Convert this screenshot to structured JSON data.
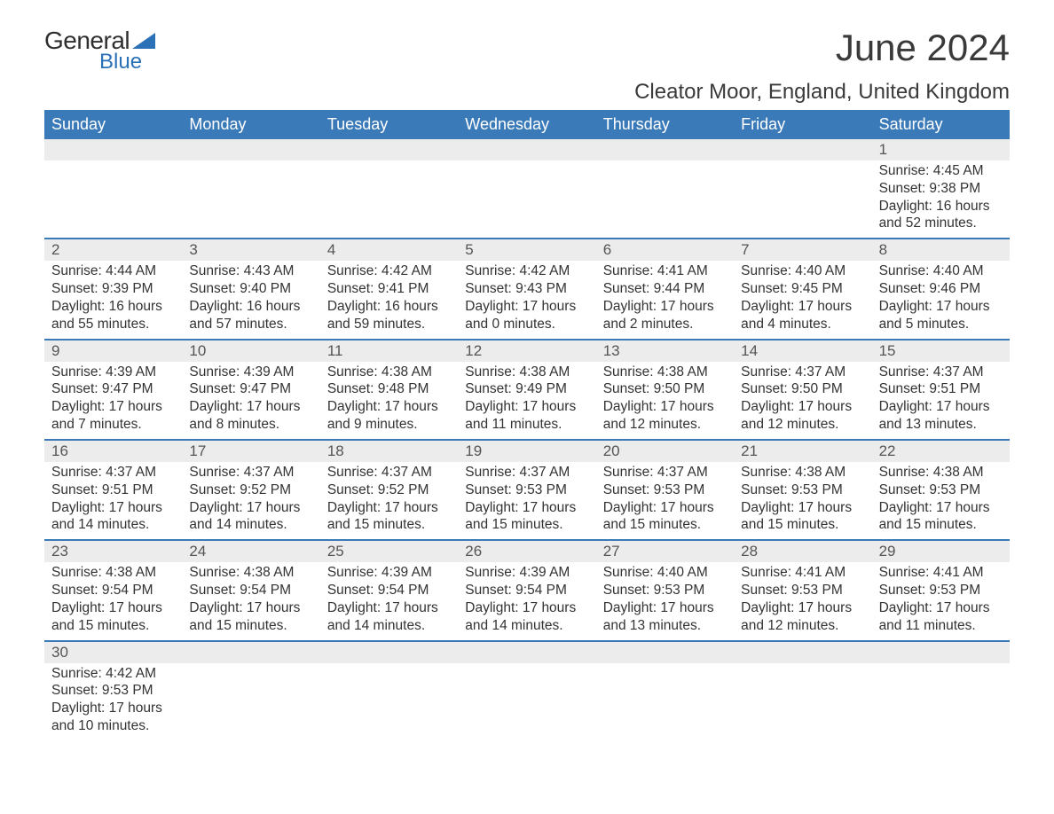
{
  "brand": {
    "word1": "General",
    "word2": "Blue"
  },
  "title": "June 2024",
  "subtitle": "Cleator Moor, England, United Kingdom",
  "colors": {
    "header_bg": "#3b7ab8",
    "header_text": "#ffffff",
    "daynum_bg": "#ececec",
    "week_border": "#3b7ab8",
    "body_text": "#333333",
    "page_bg": "#ffffff",
    "logo_accent": "#2a71b8"
  },
  "weekday_labels": [
    "Sunday",
    "Monday",
    "Tuesday",
    "Wednesday",
    "Thursday",
    "Friday",
    "Saturday"
  ],
  "weeks": [
    [
      {
        "n": "",
        "sunrise": "",
        "sunset": "",
        "daylight1": "",
        "daylight2": ""
      },
      {
        "n": "",
        "sunrise": "",
        "sunset": "",
        "daylight1": "",
        "daylight2": ""
      },
      {
        "n": "",
        "sunrise": "",
        "sunset": "",
        "daylight1": "",
        "daylight2": ""
      },
      {
        "n": "",
        "sunrise": "",
        "sunset": "",
        "daylight1": "",
        "daylight2": ""
      },
      {
        "n": "",
        "sunrise": "",
        "sunset": "",
        "daylight1": "",
        "daylight2": ""
      },
      {
        "n": "",
        "sunrise": "",
        "sunset": "",
        "daylight1": "",
        "daylight2": ""
      },
      {
        "n": "1",
        "sunrise": "Sunrise: 4:45 AM",
        "sunset": "Sunset: 9:38 PM",
        "daylight1": "Daylight: 16 hours",
        "daylight2": "and 52 minutes."
      }
    ],
    [
      {
        "n": "2",
        "sunrise": "Sunrise: 4:44 AM",
        "sunset": "Sunset: 9:39 PM",
        "daylight1": "Daylight: 16 hours",
        "daylight2": "and 55 minutes."
      },
      {
        "n": "3",
        "sunrise": "Sunrise: 4:43 AM",
        "sunset": "Sunset: 9:40 PM",
        "daylight1": "Daylight: 16 hours",
        "daylight2": "and 57 minutes."
      },
      {
        "n": "4",
        "sunrise": "Sunrise: 4:42 AM",
        "sunset": "Sunset: 9:41 PM",
        "daylight1": "Daylight: 16 hours",
        "daylight2": "and 59 minutes."
      },
      {
        "n": "5",
        "sunrise": "Sunrise: 4:42 AM",
        "sunset": "Sunset: 9:43 PM",
        "daylight1": "Daylight: 17 hours",
        "daylight2": "and 0 minutes."
      },
      {
        "n": "6",
        "sunrise": "Sunrise: 4:41 AM",
        "sunset": "Sunset: 9:44 PM",
        "daylight1": "Daylight: 17 hours",
        "daylight2": "and 2 minutes."
      },
      {
        "n": "7",
        "sunrise": "Sunrise: 4:40 AM",
        "sunset": "Sunset: 9:45 PM",
        "daylight1": "Daylight: 17 hours",
        "daylight2": "and 4 minutes."
      },
      {
        "n": "8",
        "sunrise": "Sunrise: 4:40 AM",
        "sunset": "Sunset: 9:46 PM",
        "daylight1": "Daylight: 17 hours",
        "daylight2": "and 5 minutes."
      }
    ],
    [
      {
        "n": "9",
        "sunrise": "Sunrise: 4:39 AM",
        "sunset": "Sunset: 9:47 PM",
        "daylight1": "Daylight: 17 hours",
        "daylight2": "and 7 minutes."
      },
      {
        "n": "10",
        "sunrise": "Sunrise: 4:39 AM",
        "sunset": "Sunset: 9:47 PM",
        "daylight1": "Daylight: 17 hours",
        "daylight2": "and 8 minutes."
      },
      {
        "n": "11",
        "sunrise": "Sunrise: 4:38 AM",
        "sunset": "Sunset: 9:48 PM",
        "daylight1": "Daylight: 17 hours",
        "daylight2": "and 9 minutes."
      },
      {
        "n": "12",
        "sunrise": "Sunrise: 4:38 AM",
        "sunset": "Sunset: 9:49 PM",
        "daylight1": "Daylight: 17 hours",
        "daylight2": "and 11 minutes."
      },
      {
        "n": "13",
        "sunrise": "Sunrise: 4:38 AM",
        "sunset": "Sunset: 9:50 PM",
        "daylight1": "Daylight: 17 hours",
        "daylight2": "and 12 minutes."
      },
      {
        "n": "14",
        "sunrise": "Sunrise: 4:37 AM",
        "sunset": "Sunset: 9:50 PM",
        "daylight1": "Daylight: 17 hours",
        "daylight2": "and 12 minutes."
      },
      {
        "n": "15",
        "sunrise": "Sunrise: 4:37 AM",
        "sunset": "Sunset: 9:51 PM",
        "daylight1": "Daylight: 17 hours",
        "daylight2": "and 13 minutes."
      }
    ],
    [
      {
        "n": "16",
        "sunrise": "Sunrise: 4:37 AM",
        "sunset": "Sunset: 9:51 PM",
        "daylight1": "Daylight: 17 hours",
        "daylight2": "and 14 minutes."
      },
      {
        "n": "17",
        "sunrise": "Sunrise: 4:37 AM",
        "sunset": "Sunset: 9:52 PM",
        "daylight1": "Daylight: 17 hours",
        "daylight2": "and 14 minutes."
      },
      {
        "n": "18",
        "sunrise": "Sunrise: 4:37 AM",
        "sunset": "Sunset: 9:52 PM",
        "daylight1": "Daylight: 17 hours",
        "daylight2": "and 15 minutes."
      },
      {
        "n": "19",
        "sunrise": "Sunrise: 4:37 AM",
        "sunset": "Sunset: 9:53 PM",
        "daylight1": "Daylight: 17 hours",
        "daylight2": "and 15 minutes."
      },
      {
        "n": "20",
        "sunrise": "Sunrise: 4:37 AM",
        "sunset": "Sunset: 9:53 PM",
        "daylight1": "Daylight: 17 hours",
        "daylight2": "and 15 minutes."
      },
      {
        "n": "21",
        "sunrise": "Sunrise: 4:38 AM",
        "sunset": "Sunset: 9:53 PM",
        "daylight1": "Daylight: 17 hours",
        "daylight2": "and 15 minutes."
      },
      {
        "n": "22",
        "sunrise": "Sunrise: 4:38 AM",
        "sunset": "Sunset: 9:53 PM",
        "daylight1": "Daylight: 17 hours",
        "daylight2": "and 15 minutes."
      }
    ],
    [
      {
        "n": "23",
        "sunrise": "Sunrise: 4:38 AM",
        "sunset": "Sunset: 9:54 PM",
        "daylight1": "Daylight: 17 hours",
        "daylight2": "and 15 minutes."
      },
      {
        "n": "24",
        "sunrise": "Sunrise: 4:38 AM",
        "sunset": "Sunset: 9:54 PM",
        "daylight1": "Daylight: 17 hours",
        "daylight2": "and 15 minutes."
      },
      {
        "n": "25",
        "sunrise": "Sunrise: 4:39 AM",
        "sunset": "Sunset: 9:54 PM",
        "daylight1": "Daylight: 17 hours",
        "daylight2": "and 14 minutes."
      },
      {
        "n": "26",
        "sunrise": "Sunrise: 4:39 AM",
        "sunset": "Sunset: 9:54 PM",
        "daylight1": "Daylight: 17 hours",
        "daylight2": "and 14 minutes."
      },
      {
        "n": "27",
        "sunrise": "Sunrise: 4:40 AM",
        "sunset": "Sunset: 9:53 PM",
        "daylight1": "Daylight: 17 hours",
        "daylight2": "and 13 minutes."
      },
      {
        "n": "28",
        "sunrise": "Sunrise: 4:41 AM",
        "sunset": "Sunset: 9:53 PM",
        "daylight1": "Daylight: 17 hours",
        "daylight2": "and 12 minutes."
      },
      {
        "n": "29",
        "sunrise": "Sunrise: 4:41 AM",
        "sunset": "Sunset: 9:53 PM",
        "daylight1": "Daylight: 17 hours",
        "daylight2": "and 11 minutes."
      }
    ],
    [
      {
        "n": "30",
        "sunrise": "Sunrise: 4:42 AM",
        "sunset": "Sunset: 9:53 PM",
        "daylight1": "Daylight: 17 hours",
        "daylight2": "and 10 minutes."
      },
      {
        "n": "",
        "sunrise": "",
        "sunset": "",
        "daylight1": "",
        "daylight2": ""
      },
      {
        "n": "",
        "sunrise": "",
        "sunset": "",
        "daylight1": "",
        "daylight2": ""
      },
      {
        "n": "",
        "sunrise": "",
        "sunset": "",
        "daylight1": "",
        "daylight2": ""
      },
      {
        "n": "",
        "sunrise": "",
        "sunset": "",
        "daylight1": "",
        "daylight2": ""
      },
      {
        "n": "",
        "sunrise": "",
        "sunset": "",
        "daylight1": "",
        "daylight2": ""
      },
      {
        "n": "",
        "sunrise": "",
        "sunset": "",
        "daylight1": "",
        "daylight2": ""
      }
    ]
  ]
}
